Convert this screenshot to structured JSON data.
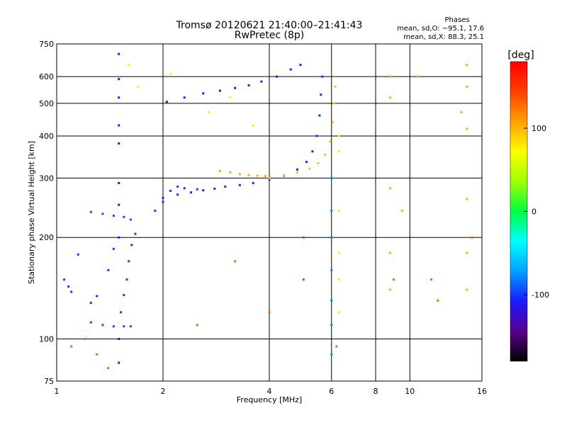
{
  "header": {
    "title": "Tromsø 20120621 21:40:00–21:41:43",
    "subtitle": "RwPretec (8p)"
  },
  "stats": {
    "heading": "Phases",
    "line_o": "mean, sd,O: −95.1, 17.6",
    "line_x": "mean, sd,X:  88.3, 25.1"
  },
  "colorbar": {
    "unit": "[deg]",
    "min": -180,
    "max": 180,
    "ticks": [
      {
        "value": 100,
        "label": "100"
      },
      {
        "value": 0,
        "label": "0"
      },
      {
        "value": -100,
        "label": "-100"
      }
    ],
    "stops": [
      "#000000",
      "#5a008c",
      "#1a1aff",
      "#00a0ff",
      "#00ffff",
      "#00ff40",
      "#a0ff00",
      "#ffff00",
      "#ffa000",
      "#ff4000",
      "#ff0000"
    ]
  },
  "chart_data": {
    "type": "scatter",
    "title": "Tromsø 20120621 21:40:00–21:41:43",
    "subtitle": "RwPretec (8p)",
    "xlabel": "Frequency [MHz]",
    "ylabel": "Stationary phase Virtual Height [km]",
    "x_scale": "log",
    "y_scale": "log",
    "xlim": [
      1,
      16
    ],
    "ylim": [
      75,
      750
    ],
    "x_ticks": [
      {
        "value": 1,
        "label": "1"
      },
      {
        "value": 2,
        "label": "2"
      },
      {
        "value": 4,
        "label": "4"
      },
      {
        "value": 6,
        "label": "6"
      },
      {
        "value": 8,
        "label": "8"
      },
      {
        "value": 10,
        "label": "10"
      },
      {
        "value": 16,
        "label": "16"
      }
    ],
    "y_ticks": [
      {
        "value": 75,
        "label": "75"
      },
      {
        "value": 100,
        "label": "100"
      },
      {
        "value": 200,
        "label": "200"
      },
      {
        "value": 300,
        "label": "300"
      },
      {
        "value": 400,
        "label": "400"
      },
      {
        "value": 500,
        "label": "500"
      },
      {
        "value": 600,
        "label": "600"
      },
      {
        "value": 750,
        "label": "750"
      }
    ],
    "grid": true,
    "color_by": "phase [deg]",
    "traces": [
      {
        "name": "",
        "phase": -105,
        "points": [
          [
            2.0,
            262
          ],
          [
            2.2,
            268
          ],
          [
            2.4,
            272
          ],
          [
            2.6,
            276
          ],
          [
            2.8,
            279
          ],
          [
            3.0,
            283
          ],
          [
            3.3,
            286
          ],
          [
            3.6,
            290
          ],
          [
            4.0,
            297
          ],
          [
            4.4,
            305
          ],
          [
            4.8,
            318
          ],
          [
            5.1,
            335
          ],
          [
            5.3,
            360
          ],
          [
            5.45,
            400
          ],
          [
            5.55,
            460
          ],
          [
            5.6,
            530
          ],
          [
            5.65,
            600
          ]
        ]
      },
      {
        "name": "",
        "phase": 95,
        "points": [
          [
            4.0,
            300
          ],
          [
            4.4,
            306
          ],
          [
            4.8,
            312
          ],
          [
            5.2,
            320
          ],
          [
            5.5,
            332
          ],
          [
            5.75,
            352
          ],
          [
            5.95,
            385
          ],
          [
            6.05,
            440
          ],
          [
            6.1,
            500
          ],
          [
            6.15,
            560
          ]
        ]
      },
      {
        "name": "",
        "phase": 105,
        "points": [
          [
            2.9,
            315
          ],
          [
            3.1,
            312
          ],
          [
            3.3,
            308
          ],
          [
            3.5,
            306
          ],
          [
            3.7,
            305
          ],
          [
            3.9,
            304
          ]
        ]
      },
      {
        "name": "",
        "phase": -110,
        "points": [
          [
            2.05,
            505
          ],
          [
            2.3,
            520
          ],
          [
            2.6,
            535
          ],
          [
            2.9,
            545
          ],
          [
            3.2,
            555
          ],
          [
            3.5,
            565
          ],
          [
            3.8,
            580
          ],
          [
            4.2,
            600
          ],
          [
            4.6,
            630
          ],
          [
            4.9,
            650
          ]
        ]
      },
      {
        "name": "",
        "phase": -95,
        "points": [
          [
            1.25,
            238
          ],
          [
            1.35,
            235
          ],
          [
            1.45,
            232
          ],
          [
            1.55,
            230
          ],
          [
            1.62,
            226
          ]
        ]
      },
      {
        "name": "",
        "phase": -100,
        "points": [
          [
            1.52,
            120
          ],
          [
            1.55,
            135
          ],
          [
            1.58,
            150
          ],
          [
            1.6,
            170
          ],
          [
            1.63,
            190
          ],
          [
            1.67,
            205
          ]
        ]
      },
      {
        "name": "",
        "phase": -95,
        "points": [
          [
            1.25,
            112
          ],
          [
            1.35,
            110
          ],
          [
            1.45,
            109
          ],
          [
            1.55,
            109
          ],
          [
            1.62,
            109
          ]
        ]
      },
      {
        "name": "",
        "phase": -100,
        "points": [
          [
            1.05,
            150
          ],
          [
            1.08,
            143
          ],
          [
            1.1,
            138
          ],
          [
            1.15,
            178
          ],
          [
            1.25,
            128
          ],
          [
            1.3,
            134
          ],
          [
            1.4,
            160
          ],
          [
            1.45,
            185
          ]
        ]
      },
      {
        "name": "",
        "phase": -100,
        "points": [
          [
            1.9,
            240
          ],
          [
            2.0,
            255
          ],
          [
            2.1,
            275
          ],
          [
            2.2,
            283
          ],
          [
            2.3,
            280
          ],
          [
            2.5,
            278
          ]
        ]
      },
      {
        "name": "",
        "phase": 60,
        "points": [
          [
            1.6,
            650
          ],
          [
            1.7,
            560
          ],
          [
            2.1,
            610
          ],
          [
            2.7,
            470
          ],
          [
            3.1,
            520
          ],
          [
            3.6,
            430
          ],
          [
            6.3,
            400
          ],
          [
            6.3,
            360
          ],
          [
            6.3,
            240
          ],
          [
            6.3,
            180
          ],
          [
            6.3,
            150
          ],
          [
            6.3,
            120
          ]
        ]
      },
      {
        "name": "",
        "phase": -80,
        "points": [
          [
            6.0,
            300
          ],
          [
            6.0,
            240
          ],
          [
            6.0,
            200
          ],
          [
            6.0,
            160
          ],
          [
            6.0,
            130
          ],
          [
            6.0,
            110
          ],
          [
            6.0,
            90
          ],
          [
            5.0,
            200
          ],
          [
            5.0,
            150
          ]
        ]
      },
      {
        "name": "",
        "phase": 20,
        "points": [
          [
            8.8,
            600
          ],
          [
            8.8,
            520
          ],
          [
            8.8,
            280
          ],
          [
            8.8,
            180
          ],
          [
            8.8,
            140
          ],
          [
            9.5,
            240
          ],
          [
            10.5,
            600
          ],
          [
            14.5,
            650
          ],
          [
            14.5,
            560
          ],
          [
            14.5,
            420
          ],
          [
            14.5,
            260
          ],
          [
            14.5,
            180
          ],
          [
            14.5,
            140
          ],
          [
            14.0,
            470
          ]
        ]
      },
      {
        "name": "",
        "phase": -120,
        "points": [
          [
            1.5,
            700
          ],
          [
            1.5,
            590
          ],
          [
            1.5,
            520
          ],
          [
            1.5,
            430
          ],
          [
            1.5,
            380
          ],
          [
            1.5,
            290
          ],
          [
            1.5,
            250
          ],
          [
            1.5,
            200
          ],
          [
            1.5,
            100
          ],
          [
            1.5,
            85
          ]
        ]
      },
      {
        "name": "",
        "phase": 130,
        "points": [
          [
            1.1,
            95
          ],
          [
            1.2,
            100
          ],
          [
            1.3,
            90
          ],
          [
            1.4,
            82
          ],
          [
            2.5,
            110
          ],
          [
            3.2,
            170
          ],
          [
            4.0,
            120
          ],
          [
            6.2,
            95
          ],
          [
            9.0,
            150
          ],
          [
            11.5,
            150
          ],
          [
            12.0,
            130
          ],
          [
            15.0,
            200
          ]
        ]
      }
    ]
  }
}
